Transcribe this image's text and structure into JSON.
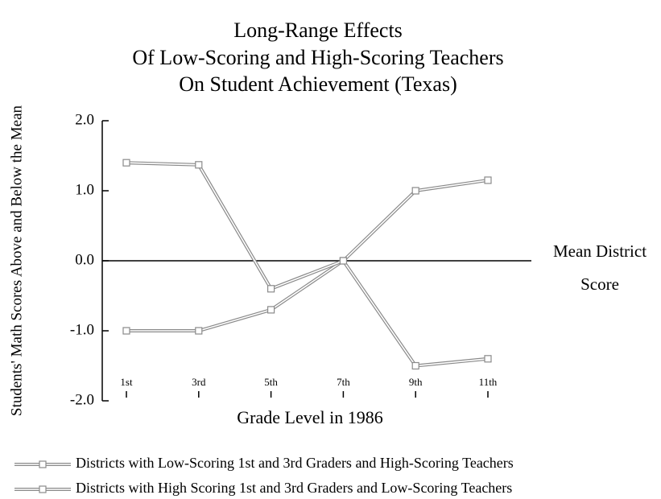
{
  "chart_data": {
    "type": "line",
    "title": [
      "Long-Range Effects",
      "Of Low-Scoring and High-Scoring Teachers",
      "On Student Achievement (Texas)"
    ],
    "y_label": "Students' Math Scores Above and Below the Mean",
    "x_label": "Grade Level in 1986",
    "annotation": [
      "Mean District",
      "Score"
    ],
    "categories": [
      "1st",
      "3rd",
      "5th",
      "7th",
      "9th",
      "11th"
    ],
    "series": [
      {
        "name": "Districts with Low-Scoring 1st and 3rd Graders and High-Scoring Teachers",
        "color": "#8a8a8a",
        "values": [
          -1.0,
          -1.0,
          -0.7,
          0.0,
          1.0,
          1.15
        ]
      },
      {
        "name": "Districts with High Scoring 1st and 3rd Graders and Low-Scoring Teachers",
        "color": "#8a8a8a",
        "values": [
          1.4,
          1.37,
          -0.4,
          0.0,
          -1.5,
          -1.4
        ]
      }
    ],
    "ylim": [
      -2,
      2
    ],
    "yticks": [
      {
        "value": -2,
        "label": "-2.0"
      },
      {
        "value": -1,
        "label": "-1.0"
      },
      {
        "value": 0,
        "label": "0.0"
      },
      {
        "value": 1,
        "label": "1.0"
      },
      {
        "value": 2,
        "label": "2.0"
      }
    ],
    "reference_line": 0
  }
}
